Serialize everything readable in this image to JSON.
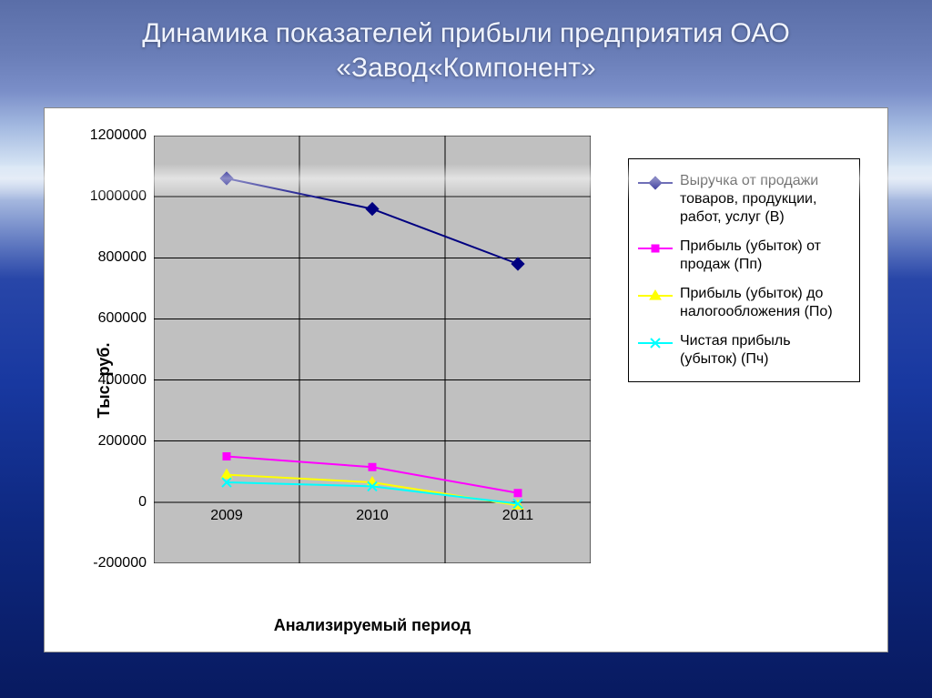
{
  "title": "Динамика показателей прибыли предприятия ОАО «Завод«Компонент»",
  "chart": {
    "type": "line",
    "background_color": "#ffffff",
    "plot_background": "#c0c0c0",
    "grid_color": "#000000",
    "grid_line_width": 1,
    "y_axis": {
      "title": "Тыс. руб.",
      "min": -200000,
      "max": 1200000,
      "tick_step": 200000,
      "ticks": [
        "-200000",
        "0",
        "200000",
        "400000",
        "600000",
        "800000",
        "1000000",
        "1200000"
      ],
      "label_fontsize": 16,
      "title_fontsize": 18,
      "title_fontweight": "bold"
    },
    "x_axis": {
      "title": "Анализируемый период",
      "categories": [
        "2009",
        "2010",
        "2011"
      ],
      "label_fontsize": 16,
      "title_fontsize": 18,
      "title_fontweight": "bold"
    },
    "series": [
      {
        "name": "Выручка от продажи товаров, продукции, работ, услуг (В)",
        "color": "#000080",
        "marker": "diamond",
        "marker_size": 9,
        "line_width": 2,
        "values": [
          1060000,
          960000,
          780000
        ]
      },
      {
        "name": "Прибыль (убыток) от продаж (Пп)",
        "color": "#ff00ff",
        "marker": "square",
        "marker_size": 8,
        "line_width": 2,
        "values": [
          150000,
          115000,
          30000
        ]
      },
      {
        "name": "Прибыль (убыток) до налогообложения (По)",
        "color": "#ffff00",
        "marker": "triangle",
        "marker_size": 9,
        "line_width": 2,
        "values": [
          90000,
          65000,
          -10000
        ]
      },
      {
        "name": "Чистая прибыль (убыток) (Пч)",
        "color": "#00ffff",
        "marker": "x",
        "marker_size": 9,
        "line_width": 2,
        "values": [
          65000,
          52000,
          -5000
        ]
      }
    ],
    "legend": {
      "position": "right",
      "border_color": "#000000",
      "background": "#ffffff",
      "fontsize": 16
    }
  }
}
